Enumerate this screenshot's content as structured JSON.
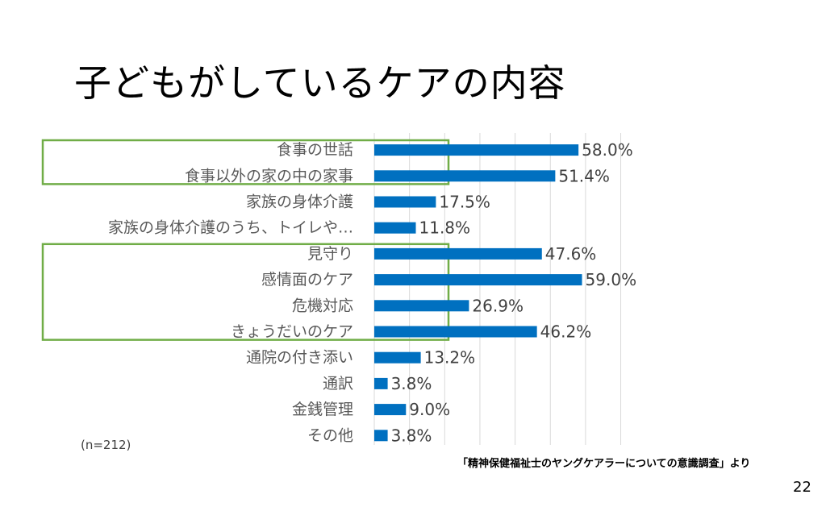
{
  "slide": {
    "title": "子どもがしているケアの内容",
    "sample_size": "(n=212)",
    "source_note": "「精神保健福祉士のヤングケアラーについての意識調査」より",
    "page_number": "22"
  },
  "colors": {
    "bar": "#0070C0",
    "highlight_box": "#70AD47",
    "gridline": "#D9D9D9"
  },
  "chart_data": {
    "type": "bar",
    "orientation": "horizontal",
    "categories": [
      "食事の世話",
      "食事以外の家の中の家事",
      "家族の身体介護",
      "家族の身体介護のうち、トイレや…",
      "見守り",
      "感情面のケア",
      "危機対応",
      "きょうだいのケア",
      "通院の付き添い",
      "通訳",
      "金銭管理",
      "その他"
    ],
    "values": [
      58.0,
      51.4,
      17.5,
      11.8,
      47.6,
      59.0,
      26.9,
      46.2,
      13.2,
      3.8,
      9.0,
      3.8
    ],
    "value_labels": [
      "58.0%",
      "51.4%",
      "17.5%",
      "11.8%",
      "47.6%",
      "59.0%",
      "26.9%",
      "46.2%",
      "13.2%",
      "3.8%",
      "9.0%",
      "3.8%"
    ],
    "xlim": [
      0,
      70
    ],
    "grid": true,
    "highlight_groups": [
      [
        0,
        1
      ],
      [
        4,
        5,
        6,
        7
      ]
    ]
  }
}
